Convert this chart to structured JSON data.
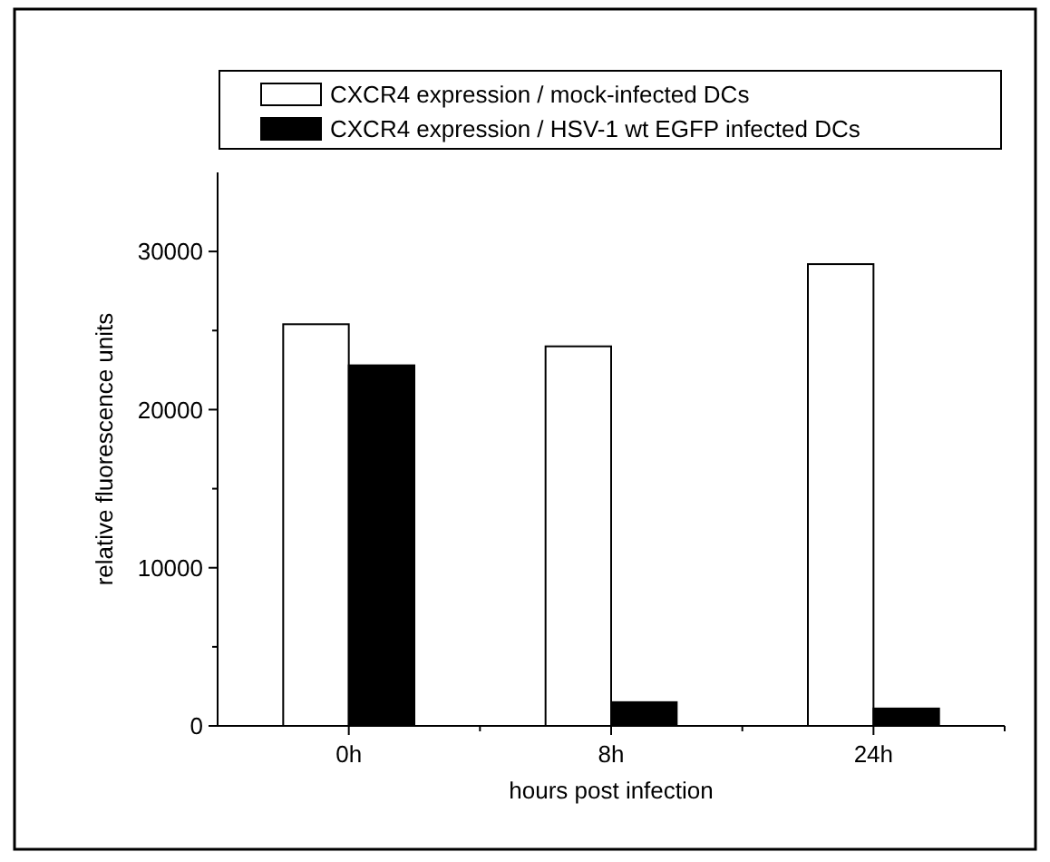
{
  "chart_data": {
    "type": "bar",
    "xlabel": "hours post infection",
    "ylabel": "relative fluorescence units",
    "categories": [
      "0h",
      "8h",
      "24h"
    ],
    "series": [
      {
        "name": "CXCR4 expression / mock-infected DCs",
        "color": "#ffffff",
        "values": [
          25400,
          24000,
          29200
        ]
      },
      {
        "name": "CXCR4 expression / HSV-1 wt EGFP infected DCs",
        "color": "#000000",
        "values": [
          22800,
          1500,
          1100
        ]
      }
    ],
    "ylim": [
      0,
      35000
    ],
    "yticks": [
      0,
      {
        "value": 5000,
        "label": null
      },
      10000,
      {
        "value": 15000,
        "label": null
      },
      20000,
      {
        "value": 25000,
        "label": null
      },
      30000
    ],
    "grid": false,
    "legend": "top"
  }
}
